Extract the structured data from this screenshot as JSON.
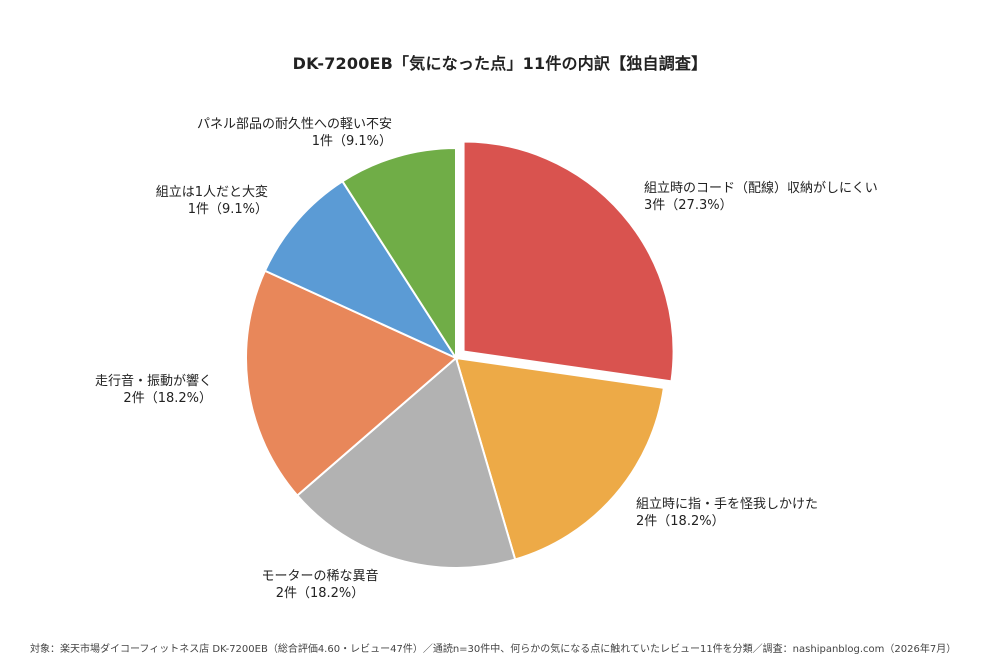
{
  "chart_data": {
    "type": "pie",
    "title": "DK-7200EB「気になった点」11件の内訳【独自調査】",
    "slices": [
      {
        "label": "組立時のコード（配線）収納がしにくい",
        "count_label": "3件（27.3%）",
        "value": 3,
        "percent": 27.3,
        "color": "#d9534f",
        "exploded": true
      },
      {
        "label": "組立時に指・手を怪我しかけた",
        "count_label": "2件（18.2%）",
        "value": 2,
        "percent": 18.2,
        "color": "#edaa47",
        "exploded": false
      },
      {
        "label": "モーターの稀な異音",
        "count_label": "2件（18.2%）",
        "value": 2,
        "percent": 18.2,
        "color": "#b2b2b2",
        "exploded": false
      },
      {
        "label": "走行音・振動が響く",
        "count_label": "2件（18.2%）",
        "value": 2,
        "percent": 18.2,
        "color": "#e8875a",
        "exploded": false
      },
      {
        "label": "組立は1人だと大変",
        "count_label": "1件（9.1%）",
        "value": 1,
        "percent": 9.1,
        "color": "#5b9bd5",
        "exploded": false
      },
      {
        "label": "パネル部品の耐久性への軽い不安",
        "count_label": "1件（9.1%）",
        "value": 1,
        "percent": 9.1,
        "color": "#70ad47",
        "exploded": false
      }
    ]
  },
  "footnote": "対象：楽天市場ダイコーフィットネス店 DK-7200EB（総合評価4.60・レビュー47件）／通読n=30件中、何らかの気になる点に触れていたレビュー11件を分類／調査：nashipanblog.com（2026年7月）"
}
